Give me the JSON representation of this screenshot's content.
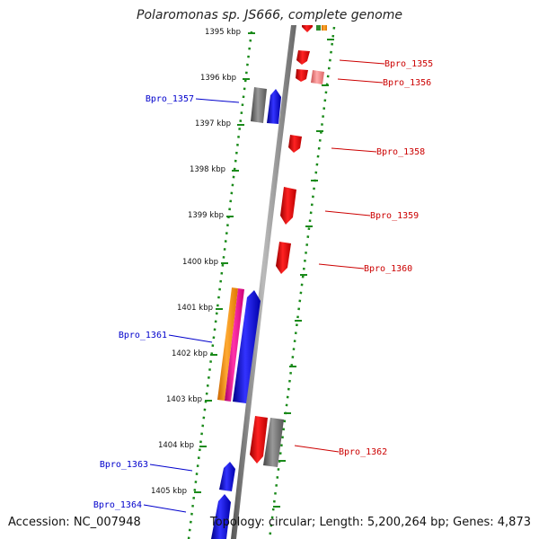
{
  "title": "Polaromonas sp. JS666, complete genome",
  "footer": {
    "accession": "Accession: NC_007948",
    "info": "Topology: circular; Length: 5,200,264 bp; Genes: 4,873"
  },
  "colors": {
    "forward": "#0000cc",
    "reverse": "#cc0000",
    "backbone": "#8a8a8a",
    "ruler_ticks": "#1a8a1a",
    "orange": "#ff9900",
    "magenta": "#ff1493",
    "gray": "#666666",
    "pink": "#f08080"
  },
  "ruler_labels": [
    {
      "kbp": 1395,
      "text": "1395 kbp"
    },
    {
      "kbp": 1396,
      "text": "1396 kbp"
    },
    {
      "kbp": 1397,
      "text": "1397 kbp"
    },
    {
      "kbp": 1398,
      "text": "1398 kbp"
    },
    {
      "kbp": 1399,
      "text": "1399 kbp"
    },
    {
      "kbp": 1400,
      "text": "1400 kbp"
    },
    {
      "kbp": 1401,
      "text": "1401 kbp"
    },
    {
      "kbp": 1402,
      "text": "1402 kbp"
    },
    {
      "kbp": 1403,
      "text": "1403 kbp"
    },
    {
      "kbp": 1404,
      "text": "1404 kbp"
    },
    {
      "kbp": 1405,
      "text": "1405 kbp"
    }
  ],
  "gene_labels": [
    {
      "text": "Bpro_1355",
      "strand": "reverse"
    },
    {
      "text": "Bpro_1356",
      "strand": "reverse"
    },
    {
      "text": "Bpro_1357",
      "strand": "forward"
    },
    {
      "text": "Bpro_1358",
      "strand": "reverse"
    },
    {
      "text": "Bpro_1359",
      "strand": "reverse"
    },
    {
      "text": "Bpro_1360",
      "strand": "reverse"
    },
    {
      "text": "Bpro_1361",
      "strand": "forward"
    },
    {
      "text": "Bpro_1362",
      "strand": "reverse"
    },
    {
      "text": "Bpro_1363",
      "strand": "forward"
    },
    {
      "text": "Bpro_1364",
      "strand": "forward"
    }
  ]
}
